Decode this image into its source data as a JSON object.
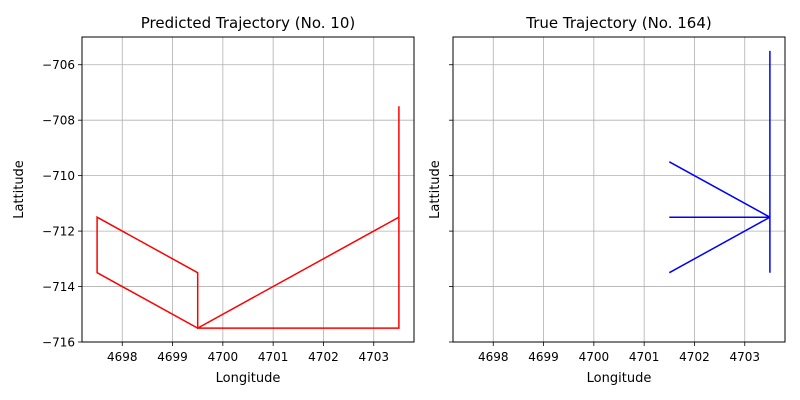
{
  "chart_data": [
    {
      "type": "line",
      "title": "Predicted Trajectory (No. 10)",
      "xlabel": "Longitude",
      "ylabel": "Lattitude",
      "xlim": [
        4697.2,
        4703.8
      ],
      "ylim": [
        -716,
        -705
      ],
      "xticks": [
        4698,
        4699,
        4700,
        4701,
        4702,
        4703
      ],
      "yticks": [
        -716,
        -714,
        -712,
        -710,
        -708,
        -706
      ],
      "grid": true,
      "color": "#ff0000",
      "series": [
        {
          "x": [
            4703.5,
            4703.5,
            4699.5,
            4699.5,
            4697.5,
            4697.5,
            4699.5,
            4703.5,
            4703.5
          ],
          "y": [
            -707.5,
            -711.5,
            -715.5,
            -713.5,
            -711.5,
            -713.5,
            -715.5,
            -715.5,
            -711.5
          ]
        }
      ]
    },
    {
      "type": "line",
      "title": "True Trajectory (No. 164)",
      "xlabel": "Longitude",
      "ylabel": "Lattitude",
      "xlim": [
        4697.2,
        4703.8
      ],
      "ylim": [
        -716,
        -705
      ],
      "xticks": [
        4698,
        4699,
        4700,
        4701,
        4702,
        4703
      ],
      "yticks": [
        -716,
        -714,
        -712,
        -710,
        -708,
        -706
      ],
      "show_ytick_labels": false,
      "grid": true,
      "color": "#0000ff",
      "series": [
        {
          "x": [
            4703.5,
            4703.5,
            4703.5,
            4701.5,
            4703.5,
            4701.5,
            4703.5,
            4701.5,
            4703.5
          ],
          "y": [
            -705.5,
            -713.5,
            -711.5,
            -709.5,
            -711.5,
            -711.5,
            -711.5,
            -713.5,
            -711.5
          ]
        }
      ]
    }
  ]
}
